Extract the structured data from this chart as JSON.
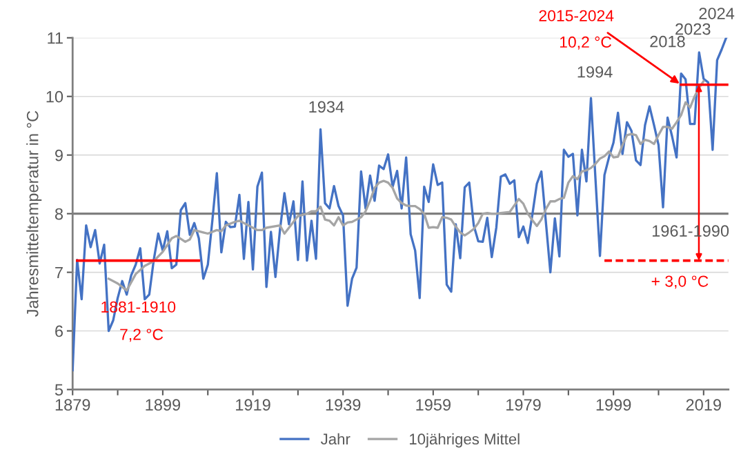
{
  "chart_data": {
    "type": "line",
    "ylabel": "Jahresmitteltemperatur in °C",
    "xlim": [
      1879,
      2024.5
    ],
    "ylim": [
      5,
      11
    ],
    "xticks": [
      1879,
      {
        "value": 1889,
        "label": null
      },
      1899,
      {
        "value": 1909,
        "label": null
      },
      1919,
      {
        "value": 1929,
        "label": null
      },
      1939,
      {
        "value": 1949,
        "label": null
      },
      1959,
      {
        "value": 1969,
        "label": null
      },
      1979,
      {
        "value": 1989,
        "label": null
      },
      1999,
      {
        "value": 2009,
        "label": null
      },
      2019
    ],
    "yticks": [
      5,
      6,
      7,
      8,
      9,
      10,
      11
    ],
    "grid": "y",
    "legend": "bottom",
    "marker": "none",
    "series": [
      {
        "name": "Jahr",
        "color": "#4472c4",
        "x": [
          1879,
          1880,
          1881,
          1882,
          1883,
          1884,
          1885,
          1886,
          1887,
          1888,
          1889,
          1890,
          1891,
          1892,
          1893,
          1894,
          1895,
          1896,
          1897,
          1898,
          1899,
          1900,
          1901,
          1902,
          1903,
          1904,
          1905,
          1906,
          1907,
          1908,
          1909,
          1910,
          1911,
          1912,
          1913,
          1914,
          1915,
          1916,
          1917,
          1918,
          1919,
          1920,
          1921,
          1922,
          1923,
          1924,
          1925,
          1926,
          1927,
          1928,
          1929,
          1930,
          1931,
          1932,
          1933,
          1934,
          1935,
          1936,
          1937,
          1938,
          1939,
          1940,
          1941,
          1942,
          1943,
          1944,
          1945,
          1946,
          1947,
          1948,
          1949,
          1950,
          1951,
          1952,
          1953,
          1954,
          1955,
          1956,
          1957,
          1958,
          1959,
          1960,
          1961,
          1962,
          1963,
          1964,
          1965,
          1966,
          1967,
          1968,
          1969,
          1970,
          1971,
          1972,
          1973,
          1974,
          1975,
          1976,
          1977,
          1978,
          1979,
          1980,
          1981,
          1982,
          1983,
          1984,
          1985,
          1986,
          1987,
          1988,
          1989,
          1990,
          1991,
          1992,
          1993,
          1994,
          1995,
          1996,
          1997,
          1998,
          1999,
          2000,
          2001,
          2002,
          2003,
          2004,
          2005,
          2006,
          2007,
          2008,
          2009,
          2010,
          2011,
          2012,
          2013,
          2014,
          2015,
          2016,
          2017,
          2018,
          2019,
          2020,
          2021,
          2022,
          2023,
          2024
        ],
        "values": [
          5.33,
          7.21,
          6.54,
          7.8,
          7.43,
          7.72,
          7.15,
          7.47,
          6.0,
          6.18,
          6.56,
          6.85,
          6.62,
          6.95,
          7.13,
          7.41,
          6.54,
          6.62,
          7.21,
          7.66,
          7.37,
          7.7,
          7.07,
          7.13,
          8.06,
          8.18,
          7.64,
          7.84,
          7.58,
          6.89,
          7.13,
          7.88,
          8.69,
          7.34,
          7.86,
          7.77,
          7.78,
          8.32,
          7.23,
          8.2,
          7.05,
          8.46,
          8.7,
          6.75,
          7.69,
          6.92,
          7.72,
          8.35,
          7.82,
          8.21,
          7.21,
          8.55,
          7.2,
          7.88,
          7.23,
          9.44,
          8.18,
          8.09,
          8.47,
          8.13,
          7.97,
          6.43,
          6.89,
          7.08,
          8.72,
          8.09,
          8.65,
          8.22,
          8.82,
          8.76,
          9.01,
          8.46,
          8.73,
          8.09,
          8.96,
          7.65,
          7.37,
          6.56,
          8.46,
          8.2,
          8.84,
          8.49,
          8.53,
          6.79,
          6.67,
          7.82,
          7.24,
          8.45,
          8.53,
          7.8,
          7.53,
          7.52,
          7.93,
          7.26,
          7.76,
          8.63,
          8.67,
          8.51,
          8.57,
          7.6,
          7.78,
          7.5,
          7.98,
          8.51,
          8.72,
          7.86,
          7.0,
          7.92,
          7.27,
          9.09,
          8.97,
          9.02,
          7.97,
          9.09,
          8.55,
          9.97,
          8.6,
          7.28,
          8.66,
          8.96,
          9.21,
          9.72,
          9.02,
          9.56,
          9.41,
          8.91,
          8.83,
          9.51,
          9.83,
          9.51,
          9.17,
          8.11,
          9.64,
          9.32,
          8.96,
          10.39,
          10.29,
          9.53,
          9.53,
          10.75,
          10.3,
          10.24,
          9.09,
          10.62,
          10.8,
          11.0
        ]
      },
      {
        "name": "10jähriges Mittel",
        "color": "#a5a5a5",
        "x": [
          1887,
          1889,
          1891,
          1893,
          1895,
          1897,
          1899,
          1901,
          1902,
          1904,
          1905,
          1906,
          1908,
          1909,
          1911,
          1912,
          1913,
          1915,
          1916,
          1918,
          1920,
          1921,
          1922,
          1925,
          1926,
          1927,
          1929,
          1931,
          1932,
          1933,
          1934,
          1935,
          1936,
          1937,
          1938,
          1939,
          1940,
          1941,
          1942,
          1943,
          1944,
          1945,
          1946,
          1947,
          1948,
          1949,
          1950,
          1951,
          1952,
          1953,
          1954,
          1955,
          1956,
          1957,
          1958,
          1959,
          1960,
          1961,
          1962,
          1963,
          1964,
          1965,
          1966,
          1967,
          1968,
          1969,
          1970,
          1971,
          1972,
          1973,
          1974,
          1975,
          1976,
          1978,
          1979,
          1980,
          1981,
          1982,
          1983,
          1984,
          1985,
          1986,
          1987,
          1988,
          1989,
          1990,
          1991,
          1992,
          1993,
          1994,
          1995,
          1996,
          1997,
          1998,
          1999,
          2000,
          2001,
          2002,
          2003,
          2004,
          2005,
          2006,
          2007,
          2008,
          2009,
          2010,
          2011,
          2012,
          2013,
          2014,
          2015,
          2016,
          2017,
          2018,
          2019
        ],
        "values": [
          6.89,
          6.81,
          6.69,
          6.97,
          7.11,
          7.19,
          7.35,
          7.58,
          7.62,
          7.52,
          7.56,
          7.72,
          7.68,
          7.66,
          7.72,
          7.7,
          7.8,
          7.86,
          7.88,
          7.8,
          7.72,
          7.72,
          7.76,
          7.8,
          7.66,
          7.76,
          7.96,
          8.0,
          8.04,
          8.04,
          8.12,
          7.9,
          7.88,
          7.8,
          7.94,
          7.8,
          7.85,
          7.86,
          7.9,
          7.94,
          8.04,
          8.22,
          8.44,
          8.53,
          8.56,
          8.53,
          8.44,
          8.26,
          8.18,
          8.14,
          8.13,
          8.13,
          8.08,
          8.0,
          7.76,
          7.77,
          7.76,
          7.94,
          7.93,
          7.9,
          7.78,
          7.68,
          7.63,
          7.68,
          7.74,
          7.84,
          8.0,
          8.01,
          8.0,
          8.0,
          8.01,
          8.02,
          8.03,
          8.25,
          8.17,
          8.0,
          7.89,
          7.79,
          7.9,
          8.08,
          8.21,
          8.21,
          8.25,
          8.27,
          8.53,
          8.64,
          8.59,
          8.72,
          8.74,
          8.78,
          8.85,
          8.94,
          8.98,
          9.06,
          8.96,
          8.97,
          9.17,
          9.34,
          9.36,
          9.34,
          9.19,
          9.26,
          9.24,
          9.19,
          9.34,
          9.48,
          9.48,
          9.45,
          9.56,
          9.68,
          9.9,
          9.81,
          10.0,
          10.15,
          10.26
        ]
      },
      {
        "color": "#ff0000",
        "x": [
          1880,
          1907
        ],
        "values": [
          7.2,
          7.2
        ]
      },
      {
        "color": "#ff0000",
        "x": [
          2014,
          2024.5
        ],
        "values": [
          10.2,
          10.2
        ]
      },
      {
        "color": "#ff0000",
        "line_style": "dashed",
        "x": [
          1997,
          2024.5
        ],
        "values": [
          7.2,
          7.2
        ]
      }
    ],
    "ref_lines": [
      {
        "axis": "y",
        "value": 8,
        "color": "#7f7f7f"
      }
    ],
    "annotations": [
      {
        "text": "1934",
        "x": 1934,
        "y": 9.44
      },
      {
        "text": "1994",
        "x": 1994,
        "y": 9.97
      },
      {
        "text": "2018",
        "x": 2018,
        "y": 10.75
      },
      {
        "text": "2023",
        "x": 2023,
        "y": 10.8
      },
      {
        "text": "2024",
        "x": 2024,
        "y": 11.0
      },
      "1881-1910",
      "7,2 °C",
      {
        "text": "2015-2024",
        "x": 2014,
        "y": 10.2
      },
      "10,2 °C",
      "+ 3,0 °C",
      "1961-1990"
    ]
  }
}
